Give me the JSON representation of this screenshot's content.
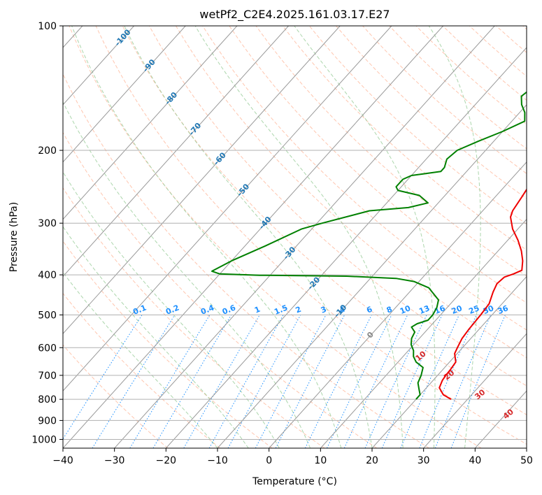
{
  "chart_data": {
    "type": "line",
    "title": "wetPf2_C2E4.2025.161.03.17.E27",
    "xlabel": "Temperature (°C)",
    "ylabel": "Pressure (hPa)",
    "xlim": [
      -40,
      50
    ],
    "ylim": [
      1050,
      100
    ],
    "y_scale": "log",
    "x_ticks": [
      -40,
      -30,
      -20,
      -10,
      0,
      10,
      20,
      30,
      40,
      50
    ],
    "y_ticks": [
      100,
      200,
      300,
      400,
      500,
      600,
      700,
      800,
      900,
      1000
    ],
    "grid": true,
    "colors": {
      "temperature": "#ee0000",
      "dewpoint": "#008000",
      "isotherm": "#999999",
      "dry_adiabat": "#ffa07a",
      "moist_adiabat": "#90c890",
      "mixing_ratio": "#1e90ff",
      "isotherm_label": "#1f77b4",
      "dry_adiabat_label": "#d62728"
    },
    "series": [
      {
        "points": [
          [
            26.8,
            800
          ],
          [
            24.5,
            780
          ],
          [
            22.5,
            750
          ],
          [
            21.8,
            720
          ],
          [
            21.6,
            700
          ],
          [
            21.5,
            680
          ],
          [
            21.2,
            650
          ],
          [
            19.5,
            620
          ],
          [
            19.0,
            600
          ],
          [
            18.3,
            570
          ],
          [
            18.0,
            540
          ],
          [
            17.8,
            500
          ],
          [
            17.5,
            470
          ],
          [
            16.2,
            440
          ],
          [
            15.5,
            420
          ],
          [
            15.8,
            405
          ],
          [
            17.0,
            398
          ],
          [
            18.0,
            390
          ],
          [
            16.5,
            370
          ],
          [
            14.5,
            350
          ],
          [
            12.0,
            330
          ],
          [
            9.0,
            310
          ],
          [
            6.5,
            290
          ],
          [
            5.8,
            280
          ],
          [
            5.2,
            260
          ],
          [
            4.5,
            240
          ],
          [
            3.5,
            220
          ],
          [
            2.8,
            200
          ],
          [
            2.0,
            185
          ],
          [
            1.0,
            170
          ],
          [
            0.5,
            160
          ],
          [
            1.0,
            150
          ],
          [
            2.0,
            140
          ],
          [
            2.0,
            130
          ],
          [
            1.0,
            120
          ],
          [
            0.0,
            112
          ],
          [
            -0.5,
            105
          ],
          [
            -0.5,
            100
          ]
        ]
      },
      {
        "points": [
          [
            20.0,
            800
          ],
          [
            20.0,
            780
          ],
          [
            19.0,
            760
          ],
          [
            17.5,
            730
          ],
          [
            16.8,
            700
          ],
          [
            15.8,
            670
          ],
          [
            13.5,
            650
          ],
          [
            12.0,
            630
          ],
          [
            11.0,
            610
          ],
          [
            9.5,
            590
          ],
          [
            8.5,
            570
          ],
          [
            8.0,
            550
          ],
          [
            6.5,
            535
          ],
          [
            7.0,
            525
          ],
          [
            8.5,
            515
          ],
          [
            8.5,
            500
          ],
          [
            8.0,
            480
          ],
          [
            7.0,
            460
          ],
          [
            3.0,
            430
          ],
          [
            -1.0,
            415
          ],
          [
            -5.0,
            408
          ],
          [
            -15.0,
            403
          ],
          [
            -32.0,
            401
          ],
          [
            -40.0,
            398
          ],
          [
            -42.0,
            392
          ],
          [
            -40.0,
            370
          ],
          [
            -36.0,
            340
          ],
          [
            -32.0,
            310
          ],
          [
            -29.0,
            300
          ],
          [
            -22.0,
            280
          ],
          [
            -15.0,
            275
          ],
          [
            -12.0,
            268
          ],
          [
            -15.0,
            257
          ],
          [
            -20.0,
            250
          ],
          [
            -21.0,
            245
          ],
          [
            -21.0,
            235
          ],
          [
            -20.0,
            230
          ],
          [
            -18.0,
            228
          ],
          [
            -15.0,
            225
          ],
          [
            -15.0,
            220
          ],
          [
            -16.0,
            210
          ],
          [
            -15.5,
            200
          ],
          [
            -13.0,
            190
          ],
          [
            -10.0,
            180
          ],
          [
            -7.5,
            170
          ],
          [
            -9.0,
            162
          ],
          [
            -11.0,
            155
          ],
          [
            -12.5,
            148
          ],
          [
            -12.0,
            142
          ],
          [
            -10.0,
            137
          ],
          [
            -5.0,
            130
          ],
          [
            -1.0,
            122
          ],
          [
            0.5,
            115
          ],
          [
            0.5,
            108
          ],
          [
            0.0,
            102
          ],
          [
            -0.5,
            100
          ]
        ]
      }
    ],
    "isotherm_labels": [
      "-100",
      "-90",
      "-80",
      "-70",
      "-60",
      "-50",
      "-40",
      "-30",
      "-20",
      "-10",
      "0"
    ],
    "dry_adiabat_labels": [
      "10",
      "20",
      "30",
      "40"
    ],
    "mixing_ratio_labels": [
      "0.1",
      "0.2",
      "0.4",
      "0.6",
      "1",
      "1.5",
      "2",
      "3",
      "4",
      "6",
      "8",
      "10",
      "13",
      "16",
      "20",
      "25",
      "30",
      "36"
    ]
  }
}
